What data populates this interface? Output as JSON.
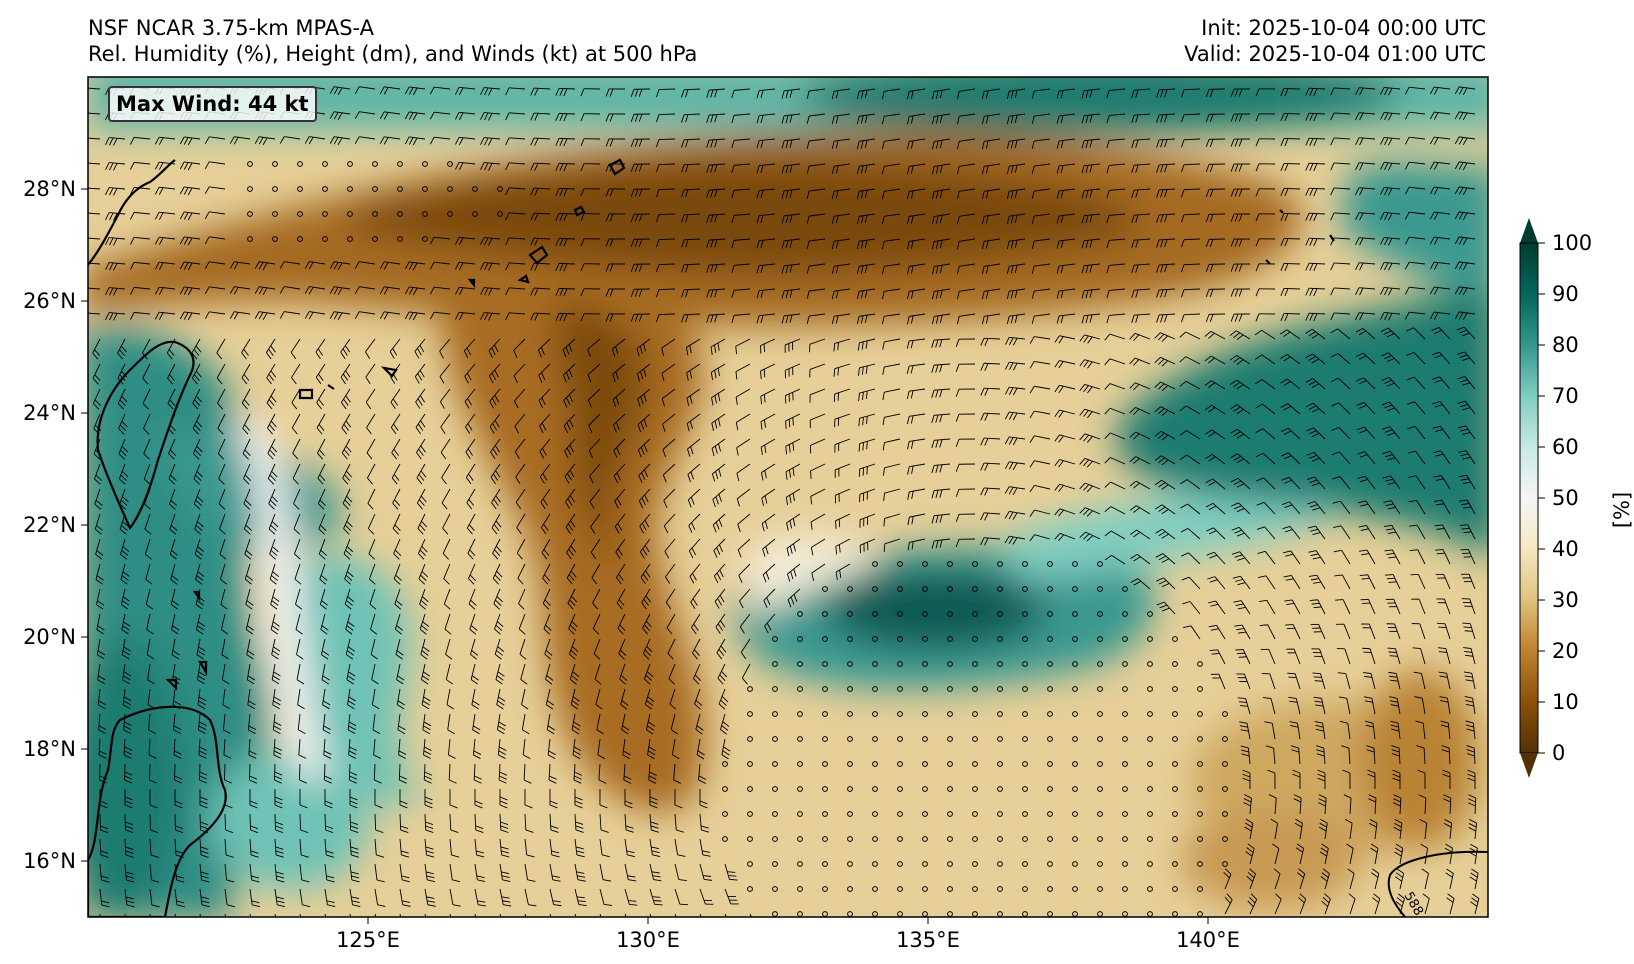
{
  "header": {
    "title_left_1": "NSF NCAR 3.75-km MPAS-A",
    "title_left_2": "Rel. Humidity (%), Height (dm), and Winds (kt) at 500 hPa",
    "title_right_1": "Init: 2025-10-04 00:00 UTC",
    "title_right_2": "Valid: 2025-10-04 01:00 UTC"
  },
  "map": {
    "extent": {
      "lon_min": 120,
      "lon_max": 145,
      "lat_min": 15,
      "lat_max": 30
    },
    "lon_ticks": [
      "125°E",
      "130°E",
      "135°E",
      "140°E"
    ],
    "lat_ticks": [
      "16°N",
      "18°N",
      "20°N",
      "22°N",
      "24°N",
      "26°N",
      "28°N"
    ],
    "max_wind_label": "Max Wind: 44 kt",
    "contour_label": "588"
  },
  "colorbar": {
    "ticks": [
      "0",
      "10",
      "20",
      "30",
      "40",
      "50",
      "60",
      "70",
      "80",
      "90",
      "100"
    ],
    "unit": "[%]",
    "colors": [
      "#543005",
      "#8c510a",
      "#bf812d",
      "#dfc27d",
      "#f6e8c3",
      "#f5f5f5",
      "#c7eae5",
      "#80cdc1",
      "#35978f",
      "#01665e",
      "#003c30"
    ]
  }
}
